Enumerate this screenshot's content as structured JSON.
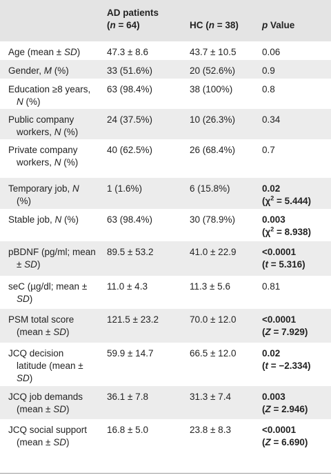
{
  "table": {
    "header": {
      "ad_title": "AD patients",
      "ad_n": [
        "(",
        "n",
        " = 64)"
      ],
      "hc": [
        "HC (",
        "n",
        " = 38)"
      ],
      "p": [
        "p",
        " Value"
      ]
    },
    "rows": [
      {
        "label": [
          "Age (mean ± ",
          "SD",
          ")"
        ],
        "ad": "47.3 ± 8.6",
        "hc": "43.7 ± 10.5",
        "p": [
          "0.06"
        ]
      },
      {
        "label": [
          "Gender, ",
          "M",
          " (%)"
        ],
        "ad": "33 (51.6%)",
        "hc": "20 (52.6%)",
        "p": [
          "0.9"
        ]
      },
      {
        "label": [
          "Education ≥8 years, ",
          "N",
          " (%)"
        ],
        "ad": "63 (98.4%)",
        "hc": "38 (100%)",
        "p": [
          "0.8"
        ]
      },
      {
        "label": [
          "Public company workers, ",
          "N",
          " (%)"
        ],
        "ad": "24 (37.5%)",
        "hc": "10 (26.3%)",
        "p": [
          "0.34"
        ]
      },
      {
        "label": [
          "Private company workers, ",
          "N",
          " (%)"
        ],
        "ad": "40 (62.5%)",
        "hc": "26 (68.4%)",
        "p": [
          "0.7"
        ]
      },
      {
        "label": [
          "Temporary job, ",
          "N",
          " (%)"
        ],
        "ad": "1 (1.6%)",
        "hc": "6 (15.8%)",
        "p": [
          "0.02",
          "(χ",
          "2",
          " = 5.444)"
        ]
      },
      {
        "label": [
          "Stable job, ",
          "N",
          " (%)"
        ],
        "ad": "63 (98.4%)",
        "hc": "30 (78.9%)",
        "p": [
          "0.003",
          "(χ",
          "2",
          " = 8.938)"
        ]
      },
      {
        "label": [
          "pBDNF (pg/ml; mean ± ",
          "SD",
          ")"
        ],
        "ad": "89.5 ± 53.2",
        "hc": "41.0 ± 22.9",
        "p": [
          "<0.0001",
          "(",
          "t",
          " = 5.316)"
        ]
      },
      {
        "label": [
          "seC (µg/dl; mean ± ",
          "SD",
          ")"
        ],
        "ad": "11.0 ± 4.3",
        "hc": "11.3 ± 5.6",
        "p": [
          "0.81"
        ]
      },
      {
        "label": [
          "PSM total score (mean ± ",
          "SD",
          ")"
        ],
        "ad": "121.5 ± 23.2",
        "hc": "70.0 ± 12.0",
        "p": [
          "<0.0001",
          "(",
          "Z",
          " = 7.929)"
        ]
      },
      {
        "label": [
          "JCQ decision latitude (mean ± ",
          "SD",
          ")"
        ],
        "ad": "59.9 ± 14.7",
        "hc": "66.5 ± 12.0",
        "p": [
          "0.02",
          "(",
          "t",
          " = −2.334)"
        ]
      },
      {
        "label": [
          "JCQ job demands (mean ± ",
          "SD",
          ")"
        ],
        "ad": "36.1 ± 7.8",
        "hc": "31.3 ± 7.4",
        "p": [
          "0.003",
          "(",
          "Z",
          " = 2.946)"
        ]
      },
      {
        "label": [
          "JCQ social support (mean ± ",
          "SD",
          ")"
        ],
        "ad": "16.8 ± 5.0",
        "hc": "23.8 ± 8.3",
        "p": [
          "<0.0001",
          "(",
          "Z",
          " = 6.690)"
        ]
      }
    ]
  }
}
